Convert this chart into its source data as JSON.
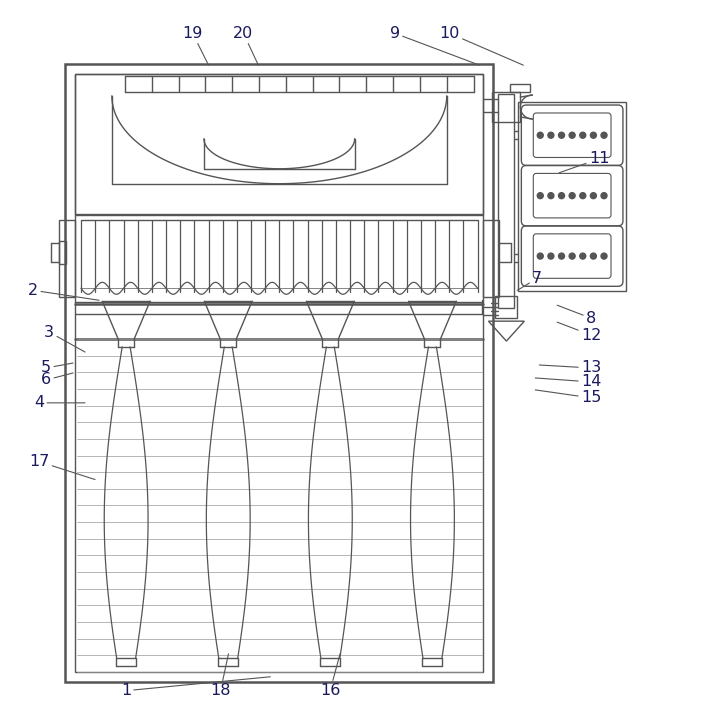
{
  "bg": "#ffffff",
  "lc": "#555555",
  "dark": "#1a1a5e",
  "lw": 1.0,
  "tlw": 1.8,
  "fw": 7.09,
  "fh": 7.28,
  "annotations": [
    [
      "1",
      125,
      692,
      270,
      678
    ],
    [
      "2",
      32,
      290,
      98,
      300
    ],
    [
      "3",
      48,
      332,
      84,
      352
    ],
    [
      "5",
      45,
      368,
      72,
      363
    ],
    [
      "6",
      45,
      380,
      72,
      373
    ],
    [
      "4",
      38,
      403,
      84,
      403
    ],
    [
      "19",
      192,
      32,
      208,
      64
    ],
    [
      "20",
      243,
      32,
      258,
      64
    ],
    [
      "9",
      395,
      32,
      480,
      64
    ],
    [
      "10",
      450,
      32,
      524,
      64
    ],
    [
      "11",
      600,
      158,
      560,
      172
    ],
    [
      "7",
      538,
      278,
      518,
      290
    ],
    [
      "8",
      592,
      318,
      558,
      305
    ],
    [
      "12",
      592,
      335,
      558,
      322
    ],
    [
      "13",
      592,
      368,
      540,
      365
    ],
    [
      "14",
      592,
      382,
      536,
      378
    ],
    [
      "15",
      592,
      398,
      536,
      390
    ],
    [
      "17",
      38,
      462,
      94,
      480
    ],
    [
      "18",
      220,
      692,
      228,
      655
    ],
    [
      "16",
      330,
      692,
      340,
      655
    ]
  ]
}
